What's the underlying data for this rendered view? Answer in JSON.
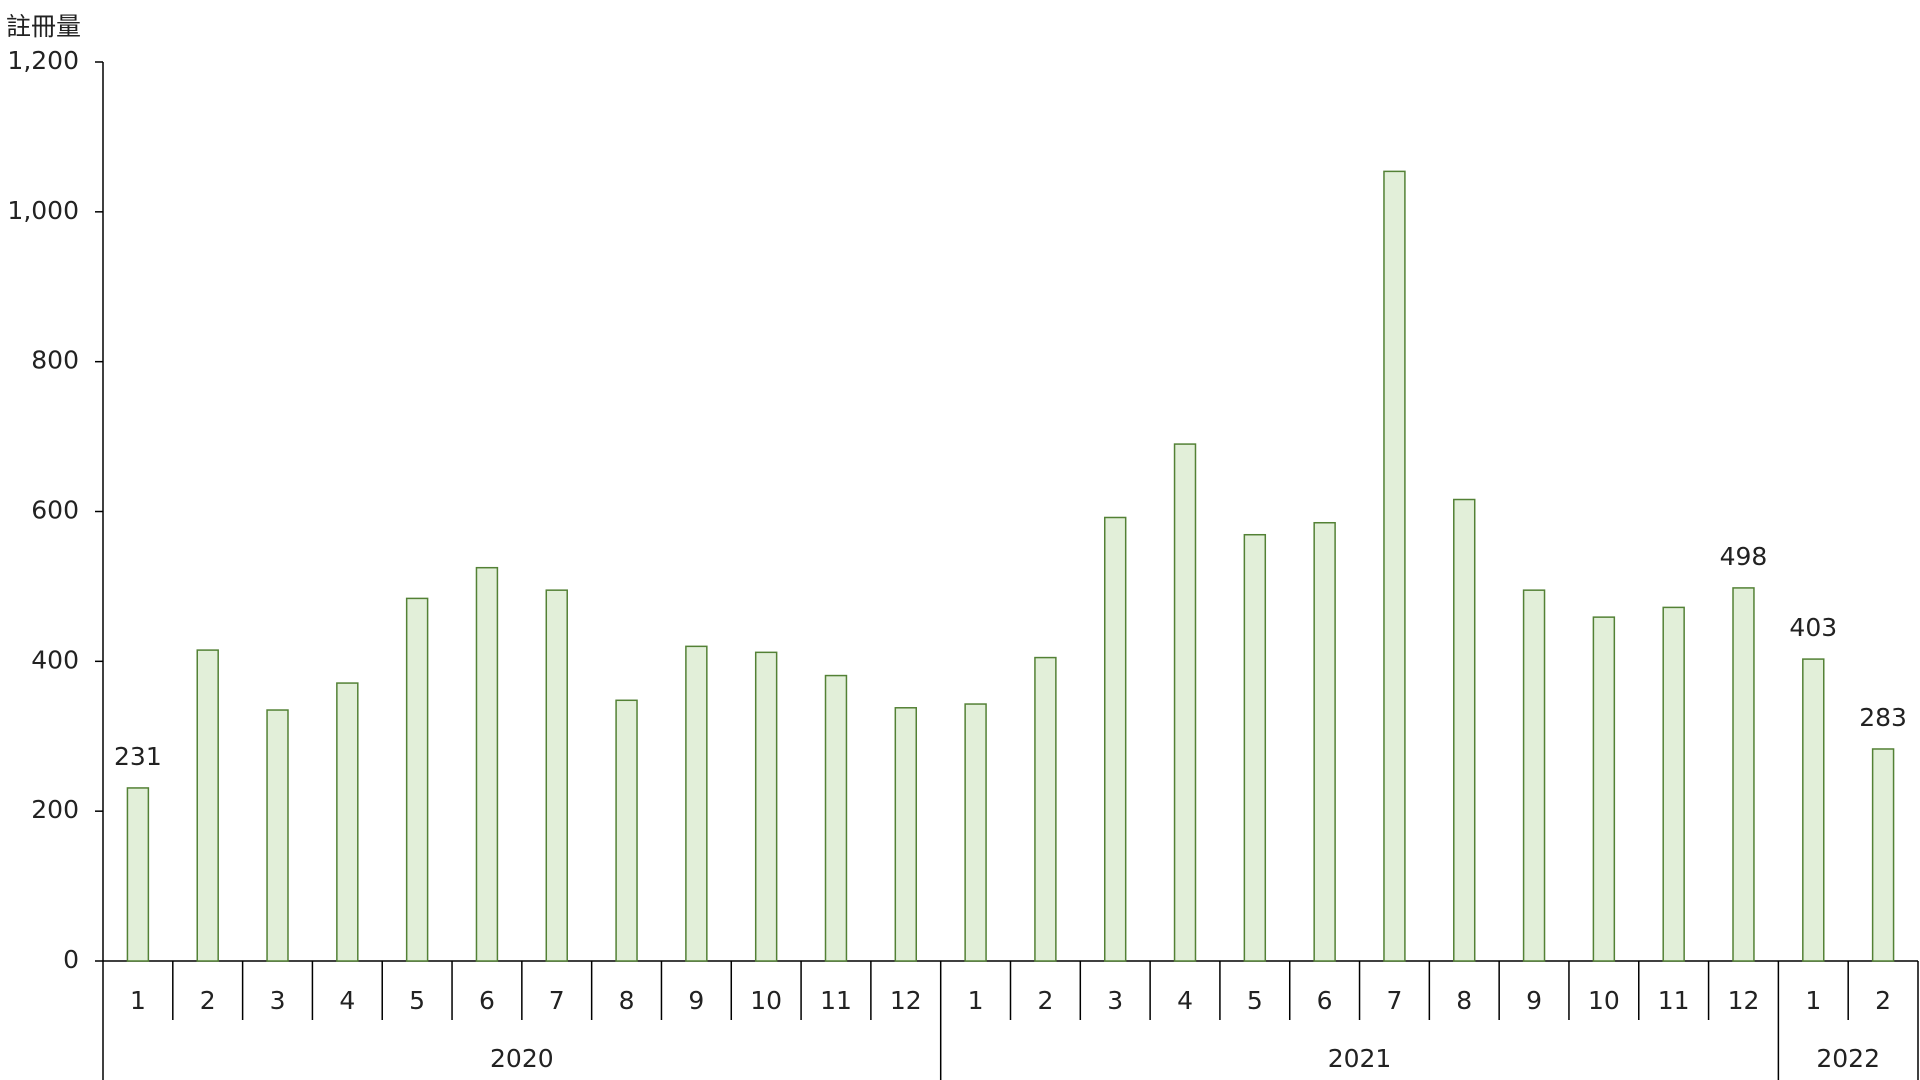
{
  "chart_data": {
    "type": "bar",
    "y_axis_title": "註冊量",
    "category_groups": [
      {
        "name": "2020",
        "categories": [
          "1",
          "2",
          "3",
          "4",
          "5",
          "6",
          "7",
          "8",
          "9",
          "10",
          "11",
          "12"
        ]
      },
      {
        "name": "2021",
        "categories": [
          "1",
          "2",
          "3",
          "4",
          "5",
          "6",
          "7",
          "8",
          "9",
          "10",
          "11",
          "12"
        ]
      },
      {
        "name": "2022",
        "categories": [
          "1",
          "2"
        ]
      }
    ],
    "values": [
      231,
      415,
      335,
      371,
      484,
      525,
      495,
      348,
      420,
      412,
      381,
      338,
      343,
      405,
      592,
      690,
      569,
      585,
      1054,
      616,
      495,
      459,
      472,
      498,
      403,
      283
    ],
    "value_labels": [
      "231",
      null,
      null,
      null,
      null,
      null,
      null,
      null,
      null,
      null,
      null,
      null,
      null,
      null,
      null,
      null,
      null,
      null,
      null,
      null,
      null,
      null,
      null,
      "498",
      "403",
      "283"
    ],
    "color": "#e2efd9",
    "edge_color": "#538135",
    "ylim": [
      0,
      1200
    ],
    "yticks": [
      0,
      200,
      400,
      600,
      800,
      {
        "value": 1000,
        "label": "1,000"
      },
      {
        "value": 1200,
        "label": "1,200"
      }
    ],
    "grid": false
  }
}
